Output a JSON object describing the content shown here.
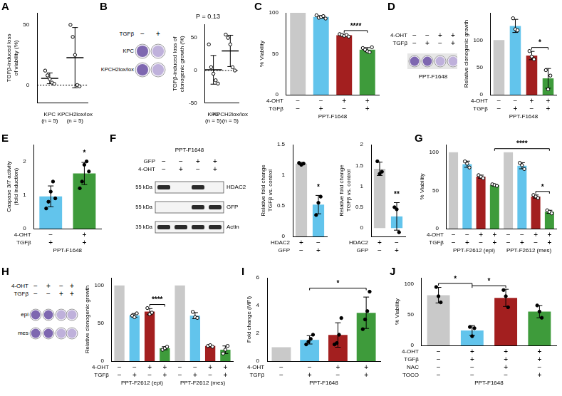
{
  "chart_data": [
    {
      "letter": "A",
      "type": "dot",
      "categories": [
        [
          "KPC",
          "(n = 5)"
        ],
        [
          "KPCH2lox/lox",
          "(n = 5)"
        ]
      ],
      "values": [
        5.6,
        22.8
      ],
      "errors": [
        4.5,
        25
      ],
      "points": [
        [
          12,
          8,
          5,
          2,
          1
        ],
        [
          50,
          40,
          25,
          0,
          -1
        ]
      ],
      "y_label": [
        "TGFβ-induced loss",
        "of viability (%)"
      ],
      "ylim": [
        -15,
        60
      ],
      "yticks": [
        0,
        50
      ],
      "marker": "open",
      "grid": false
    },
    {
      "type": "dot",
      "title": "P = 0.13",
      "categories": [
        [
          "KPC",
          "(n = 5)"
        ],
        [
          "KPCH2lox/lox",
          "(n = 5)"
        ]
      ],
      "values": [
        1,
        30
      ],
      "errors": [
        22,
        24
      ],
      "points": [
        [
          40,
          5,
          -5,
          -15,
          -20
        ],
        [
          55,
          50,
          40,
          5,
          0
        ]
      ],
      "y_label": [
        "TGFβ-induced loss of",
        "clonogenic growth (%)"
      ],
      "ylim": [
        -50,
        70
      ],
      "yticks": [
        -50,
        0,
        50
      ],
      "marker": "open",
      "grid": false
    },
    {
      "letter": "C",
      "type": "bar",
      "values": [
        100,
        95,
        72.6,
        55
      ],
      "errors": [
        0,
        1.6,
        1.1,
        2.5
      ],
      "points": [
        [],
        [
          97,
          94,
          95,
          96,
          93
        ],
        [
          74,
          73,
          72,
          73,
          71
        ],
        [
          57,
          55,
          53,
          52,
          58
        ]
      ],
      "colors": [
        "#c9c9c9",
        "#62c4ec",
        "#a31f1f",
        "#3e9b3b"
      ],
      "conditions": [
        {
          "name": "4-OHT",
          "values": [
            "−",
            "−",
            "+",
            "+"
          ]
        },
        {
          "name": "TGFβ",
          "values": [
            "−",
            "+",
            "−",
            "+"
          ]
        }
      ],
      "cell_line": "PPT-F1648",
      "significance": [
        {
          "text": "****",
          "from": 2,
          "to": 3
        }
      ],
      "y_label": [
        "% Viability"
      ],
      "ylim": [
        0,
        100
      ],
      "yticks": [
        0,
        50,
        100
      ],
      "marker": "open",
      "grid": false,
      "tick_labels": "y"
    },
    {
      "type": "bar",
      "values": [
        100,
        126,
        71.7,
        30
      ],
      "errors": [
        0,
        12,
        7.6,
        18
      ],
      "points": [
        [],
        [
          140,
          120,
          118
        ],
        [
          80,
          70,
          65
        ],
        [
          45,
          10,
          35
        ]
      ],
      "colors": [
        "#c9c9c9",
        "#62c4ec",
        "#a31f1f",
        "#3e9b3b"
      ],
      "conditions": [
        {
          "name": "4-OHT",
          "values": [
            "−",
            "−",
            "+",
            "+"
          ]
        },
        {
          "name": "TGFβ",
          "values": [
            "−",
            "+",
            "−",
            "+"
          ]
        }
      ],
      "cell_line": "PPT-F1648",
      "significance": [
        {
          "text": "*",
          "from": 2,
          "to": 3
        }
      ],
      "y_label": [
        "Relative clonogenic growth"
      ],
      "ylim": [
        0,
        150
      ],
      "yticks": [
        0,
        50,
        100
      ],
      "marker": "open",
      "grid": false,
      "tick_labels": "y"
    },
    {
      "letter": "E",
      "type": "bar",
      "values": [
        0.96,
        1.64
      ],
      "errors": [
        0.31,
        0.33
      ],
      "points": [
        [
          0.6,
          0.8,
          1.1,
          1.4,
          0.9
        ],
        [
          1.2,
          1.4,
          1.9,
          2.0,
          1.7
        ]
      ],
      "colors": [
        "#62c4ec",
        "#3e9b3b"
      ],
      "conditions": [
        {
          "name": "4-OHT",
          "values": [
            "−",
            "+"
          ]
        },
        {
          "name": "TGFβ",
          "values": [
            "+",
            "+"
          ]
        }
      ],
      "cell_line": "PPT-F1648",
      "significance": [
        {
          "text": "*",
          "from": 1,
          "to": 1
        }
      ],
      "y_label": [
        "Caspase 3/7 activity",
        "(fold induction)"
      ],
      "ylim": [
        0,
        2.5
      ],
      "yticks": [
        0,
        1,
        2
      ],
      "marker": "filled",
      "grid": false,
      "tick_labels": "y"
    },
    {
      "type": "bar",
      "values": [
        1.19,
        0.52
      ],
      "errors": [
        0.02,
        0.15
      ],
      "points": [
        [
          1.2,
          1.17,
          1.19
        ],
        [
          0.35,
          0.55,
          0.65
        ]
      ],
      "colors": [
        "#c9c9c9",
        "#62c4ec"
      ],
      "conditions": [
        {
          "name": "HDAC2",
          "values": [
            "+",
            "−"
          ]
        },
        {
          "name": "GFP",
          "values": [
            "−",
            "+"
          ]
        }
      ],
      "significance": [
        {
          "text": "*",
          "from": 1,
          "to": 1
        }
      ],
      "y_label": [
        "Relative fold change",
        "TGFβ vs. control"
      ],
      "ylim": [
        0,
        1.5
      ],
      "yticks": [
        0,
        0.5,
        1,
        1.5
      ],
      "marker": "filled",
      "grid": false,
      "tick_labels": "y"
    },
    {
      "type": "bar",
      "values": [
        1.42,
        0.28
      ],
      "errors": [
        0.16,
        0.33
      ],
      "points": [
        [
          1.6,
          1.3,
          1.35
        ],
        [
          0.5,
          0.45,
          -0.1
        ]
      ],
      "colors": [
        "#c9c9c9",
        "#62c4ec"
      ],
      "conditions": [
        {
          "name": "HDAC2",
          "values": [
            "+",
            "−"
          ]
        },
        {
          "name": "GFP",
          "values": [
            "−",
            "+"
          ]
        }
      ],
      "significance": [
        {
          "text": "**",
          "from": 1,
          "to": 1
        }
      ],
      "y_label": [
        "Relative fold change",
        "TGFβ vs. control"
      ],
      "ylim": [
        -0.2,
        2
      ],
      "yticks": [
        0,
        0.5,
        1,
        1.5,
        2
      ],
      "marker": "filled",
      "grid": false,
      "tick_labels": "y"
    },
    {
      "letter": "G",
      "type": "bar",
      "values": [
        100,
        84.3,
        68,
        57,
        100,
        82.3,
        42,
        22
      ],
      "errors": [
        0,
        4,
        2,
        1,
        0,
        4,
        2,
        2
      ],
      "points": [
        [],
        [
          88,
          85,
          80
        ],
        [
          70,
          68,
          66
        ],
        [
          58,
          57,
          56
        ],
        [],
        [
          86,
          83,
          78
        ],
        [
          44,
          42,
          40
        ],
        [
          24,
          22,
          20
        ]
      ],
      "colors": [
        "#c9c9c9",
        "#62c4ec",
        "#a31f1f",
        "#3e9b3b",
        "#c9c9c9",
        "#62c4ec",
        "#a31f1f",
        "#3e9b3b"
      ],
      "conditions": [
        {
          "name": "4-OHT",
          "values": [
            "−",
            "−",
            "+",
            "+",
            "−",
            "−",
            "+",
            "+"
          ]
        },
        {
          "name": "TGFβ",
          "values": [
            "−",
            "+",
            "−",
            "+",
            "−",
            "+",
            "−",
            "+"
          ]
        }
      ],
      "groups": [
        {
          "label": "PPT-F2612 (epi)",
          "from": 0,
          "to": 3
        },
        {
          "label": "PPT-F2612 (mes)",
          "from": 4,
          "to": 7
        }
      ],
      "significance": [
        {
          "text": "****",
          "from": 3,
          "to": 7
        },
        {
          "text": "*",
          "from": 6,
          "to": 7
        }
      ],
      "y_label": [
        "% Viability"
      ],
      "ylim": [
        0,
        110
      ],
      "yticks": [
        0,
        50,
        100
      ],
      "marker": "open",
      "grid": false,
      "tick_labels": "y"
    },
    {
      "type": "bar",
      "values": [
        100,
        60.3,
        65.3,
        17,
        100,
        60,
        20,
        15
      ],
      "errors": [
        0,
        2.5,
        4,
        2,
        0,
        4,
        1,
        5
      ],
      "points": [
        [],
        [
          60,
          58,
          63
        ],
        [
          70,
          62,
          64
        ],
        [
          15,
          17,
          19
        ],
        [],
        [
          65,
          58,
          57
        ],
        [
          20,
          21,
          19
        ],
        [
          10,
          15,
          20
        ]
      ],
      "colors": [
        "#c9c9c9",
        "#62c4ec",
        "#a31f1f",
        "#3e9b3b",
        "#c9c9c9",
        "#62c4ec",
        "#a31f1f",
        "#3e9b3b"
      ],
      "conditions": [
        {
          "name": "4-OHT",
          "values": [
            "−",
            "−",
            "+",
            "+",
            "−",
            "−",
            "+",
            "+"
          ]
        },
        {
          "name": "TGFβ",
          "values": [
            "−",
            "+",
            "−",
            "+",
            "−",
            "+",
            "−",
            "+"
          ]
        }
      ],
      "groups": [
        {
          "label": "PPT-F2612 (epi)",
          "from": 0,
          "to": 3
        },
        {
          "label": "PPT-F2612 (mes)",
          "from": 4,
          "to": 7
        }
      ],
      "significance": [
        {
          "text": "****",
          "from": 2,
          "to": 3
        }
      ],
      "y_label": [
        "Relative clonogenic growth"
      ],
      "ylim": [
        0,
        110
      ],
      "yticks": [
        0,
        50,
        100
      ],
      "marker": "open",
      "grid": false,
      "tick_labels": "y"
    },
    {
      "letter": "I",
      "type": "bar",
      "values": [
        1,
        1.53,
        1.88,
        3.48
      ],
      "errors": [
        0,
        0.3,
        0.88,
        1.13
      ],
      "points": [
        [],
        [
          1.2,
          1.4,
          1.6,
          1.9
        ],
        [
          1.2,
          1.3,
          1.9,
          3.1
        ],
        [
          2.3,
          3.0,
          3.6,
          5.0
        ]
      ],
      "colors": [
        "#c9c9c9",
        "#62c4ec",
        "#a31f1f",
        "#3e9b3b"
      ],
      "conditions": [
        {
          "name": "4-OHT",
          "values": [
            "−",
            "−",
            "+",
            "+"
          ]
        },
        {
          "name": "TGFβ",
          "values": [
            "−",
            "+",
            "−",
            "+"
          ]
        }
      ],
      "cell_line": "PPT-F1648",
      "significance": [
        {
          "text": "*",
          "from": 1,
          "to": 3
        }
      ],
      "y_label": [
        "Fold change (MFI)"
      ],
      "ylim": [
        0,
        6
      ],
      "yticks": [
        0,
        2,
        4,
        6
      ],
      "marker": "filled",
      "grid": false,
      "tick_labels": "y"
    },
    {
      "letter": "J",
      "type": "bar",
      "values": [
        81.7,
        24.3,
        77.3,
        55
      ],
      "errors": [
        12.6,
        8,
        14,
        10
      ],
      "points": [
        [
          95,
          80,
          70
        ],
        [
          30,
          15,
          28
        ],
        [
          90,
          80,
          62
        ],
        [
          65,
          55,
          45
        ]
      ],
      "colors": [
        "#c9c9c9",
        "#62c4ec",
        "#a31f1f",
        "#3e9b3b"
      ],
      "conditions": [
        {
          "name": "4-OHT",
          "values": [
            "−",
            "+",
            "+",
            "+"
          ]
        },
        {
          "name": "TGFβ",
          "values": [
            "−",
            "+",
            "+",
            "+"
          ]
        },
        {
          "name": "NAC",
          "values": [
            "−",
            "−",
            "+",
            "−"
          ]
        },
        {
          "name": "TOCO",
          "values": [
            "−",
            "−",
            "−",
            "+"
          ]
        }
      ],
      "cell_line": "PPT-F1648",
      "significance": [
        {
          "text": "*",
          "from": 0,
          "to": 1
        },
        {
          "text": "*",
          "from": 1,
          "to": 2
        }
      ],
      "y_label": [
        "% Viability"
      ],
      "ylim": [
        0,
        110
      ],
      "yticks": [
        0,
        50,
        100
      ],
      "marker": "filled",
      "grid": false,
      "tick_labels": "y"
    }
  ],
  "images": [
    {
      "letter": "B",
      "kind": "plates",
      "header": "TGFβ",
      "columns": [
        "−",
        "+"
      ],
      "rows": [
        "KPC",
        "KPCH2lox/lox"
      ]
    },
    {
      "letter": "D",
      "kind": "plate_strip",
      "conditions": [
        {
          "name": "4-OHT",
          "values": [
            "−",
            "−",
            "+",
            "+"
          ]
        },
        {
          "name": "TGFβ",
          "values": [
            "−",
            "+",
            "−",
            "+"
          ]
        }
      ],
      "caption": "PPT-F1648"
    },
    {
      "letter": "F",
      "kind": "blot",
      "title": "PPT-F1648",
      "conditions": [
        {
          "name": "GFP",
          "values": [
            "−",
            "−",
            "+",
            "+"
          ]
        },
        {
          "name": "4-OHT",
          "values": [
            "−",
            "+",
            "−",
            "+"
          ]
        }
      ],
      "bands": [
        {
          "name": "HDAC2",
          "marker": "55 kDa",
          "present": [
            true,
            false,
            true,
            false
          ]
        },
        {
          "name": "GFP",
          "marker": "55 kDa",
          "present": [
            false,
            false,
            true,
            true
          ]
        },
        {
          "name": "Actin",
          "marker": "35 kDa",
          "present": [
            true,
            true,
            true,
            true
          ]
        }
      ]
    },
    {
      "letter": "H",
      "kind": "plate_grid",
      "conditions": [
        {
          "name": "4-OHT",
          "values": [
            "−",
            "+",
            "−",
            "+"
          ]
        },
        {
          "name": "TGFβ",
          "values": [
            "−",
            "−",
            "+",
            "+"
          ]
        }
      ],
      "rows": [
        "epi",
        "mes"
      ]
    }
  ]
}
